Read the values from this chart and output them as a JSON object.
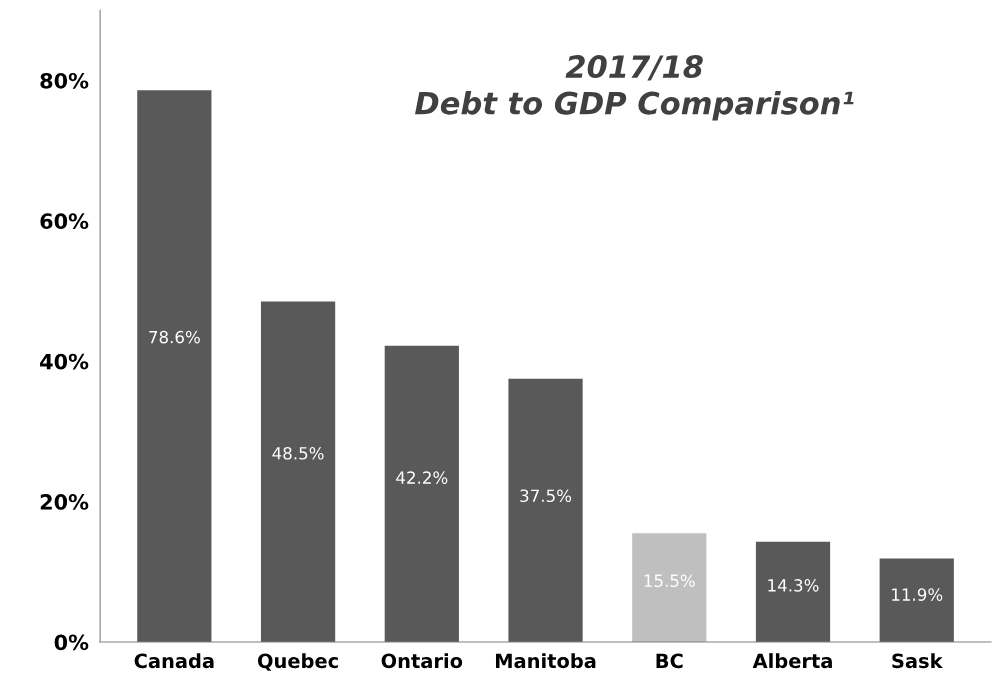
{
  "chart_data": {
    "type": "bar",
    "title": "2017/18\nDebt to GDP Comparison¹",
    "categories": [
      "Canada",
      "Quebec",
      "Ontario",
      "Manitoba",
      "BC",
      "Alberta",
      "Sask"
    ],
    "values": [
      78.6,
      48.5,
      42.2,
      37.5,
      15.5,
      14.3,
      11.9
    ],
    "colors": [
      "#595959",
      "#595959",
      "#595959",
      "#595959",
      "#bfbfbf",
      "#595959",
      "#595959"
    ],
    "value_labels": [
      "78.6%",
      "48.5%",
      "42.2%",
      "37.5%",
      "15.5%",
      "14.3%",
      "11.9%"
    ],
    "ylim": [
      0,
      90
    ],
    "yticks": [
      {
        "value": 0,
        "label": "0%"
      },
      {
        "value": 20,
        "label": "20%"
      },
      {
        "value": 40,
        "label": "40%"
      },
      {
        "value": 60,
        "label": "60%"
      },
      {
        "value": 80,
        "label": "80%"
      }
    ],
    "grid": false
  }
}
